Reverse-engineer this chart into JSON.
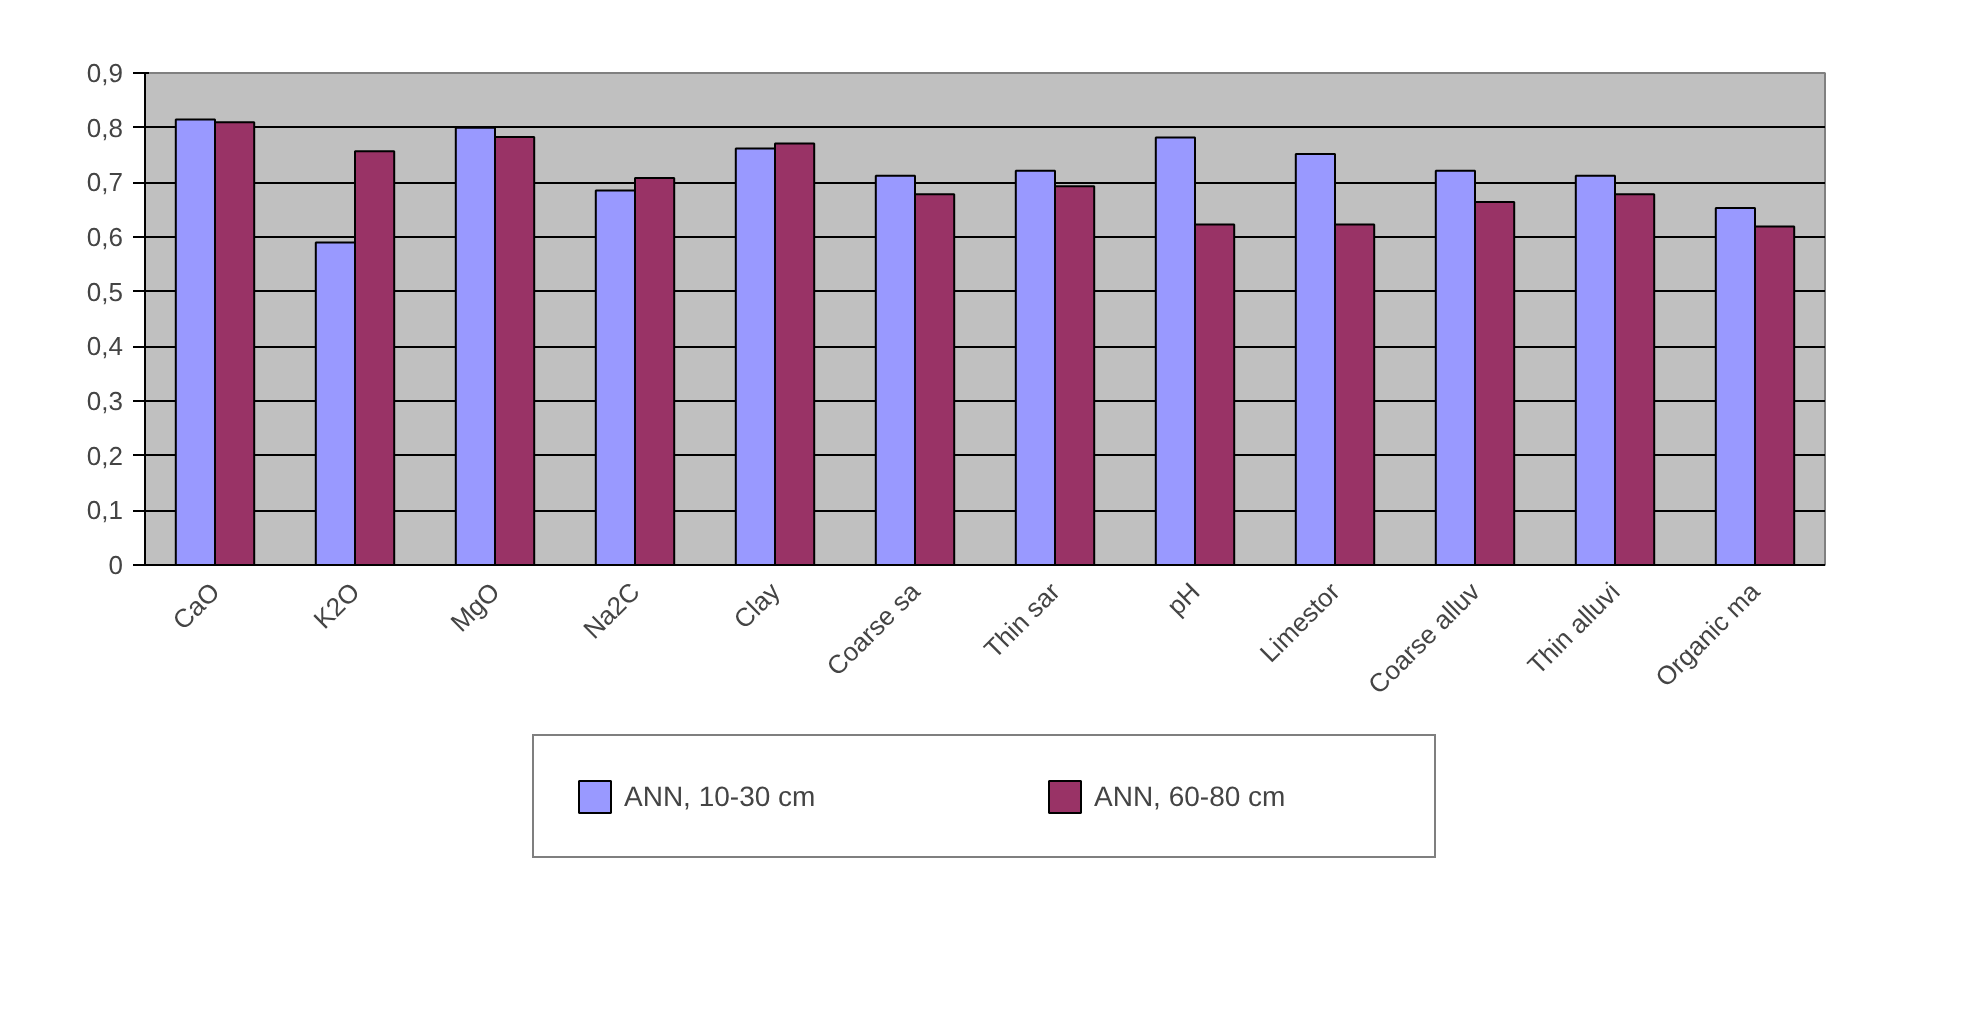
{
  "chart_data": {
    "type": "bar",
    "categories": [
      "CaO",
      "K2O",
      "MgO",
      "Na2C",
      "Clay",
      "Coarse sa",
      "Thin sar",
      "pH",
      "Limestor",
      "Coarse alluv",
      "Thin alluvi",
      "Organic ma"
    ],
    "series": [
      {
        "name": "ANN, 10-30 cm",
        "color": "#9999ff",
        "values": [
          0.815,
          0.59,
          0.8,
          0.685,
          0.762,
          0.712,
          0.721,
          0.782,
          0.752,
          0.721,
          0.712,
          0.653
        ]
      },
      {
        "name": "ANN, 60-80 cm",
        "color": "#993366",
        "values": [
          0.81,
          0.757,
          0.783,
          0.708,
          0.771,
          0.678,
          0.693,
          0.623,
          0.623,
          0.664,
          0.678,
          0.619
        ]
      }
    ],
    "ylim": [
      0,
      0.9
    ],
    "yticks": [
      0,
      {
        "value": 0.1,
        "label": "0,1"
      },
      {
        "value": 0.2,
        "label": "0,2"
      },
      {
        "value": 0.3,
        "label": "0,3"
      },
      {
        "value": 0.4,
        "label": "0,4"
      },
      {
        "value": 0.5,
        "label": "0,5"
      },
      {
        "value": 0.6,
        "label": "0,6"
      },
      {
        "value": 0.7,
        "label": "0,7"
      },
      {
        "value": 0.8,
        "label": "0,8"
      },
      {
        "value": 0.9,
        "label": "0,9"
      }
    ],
    "grid": "y",
    "legend": "bottom"
  }
}
